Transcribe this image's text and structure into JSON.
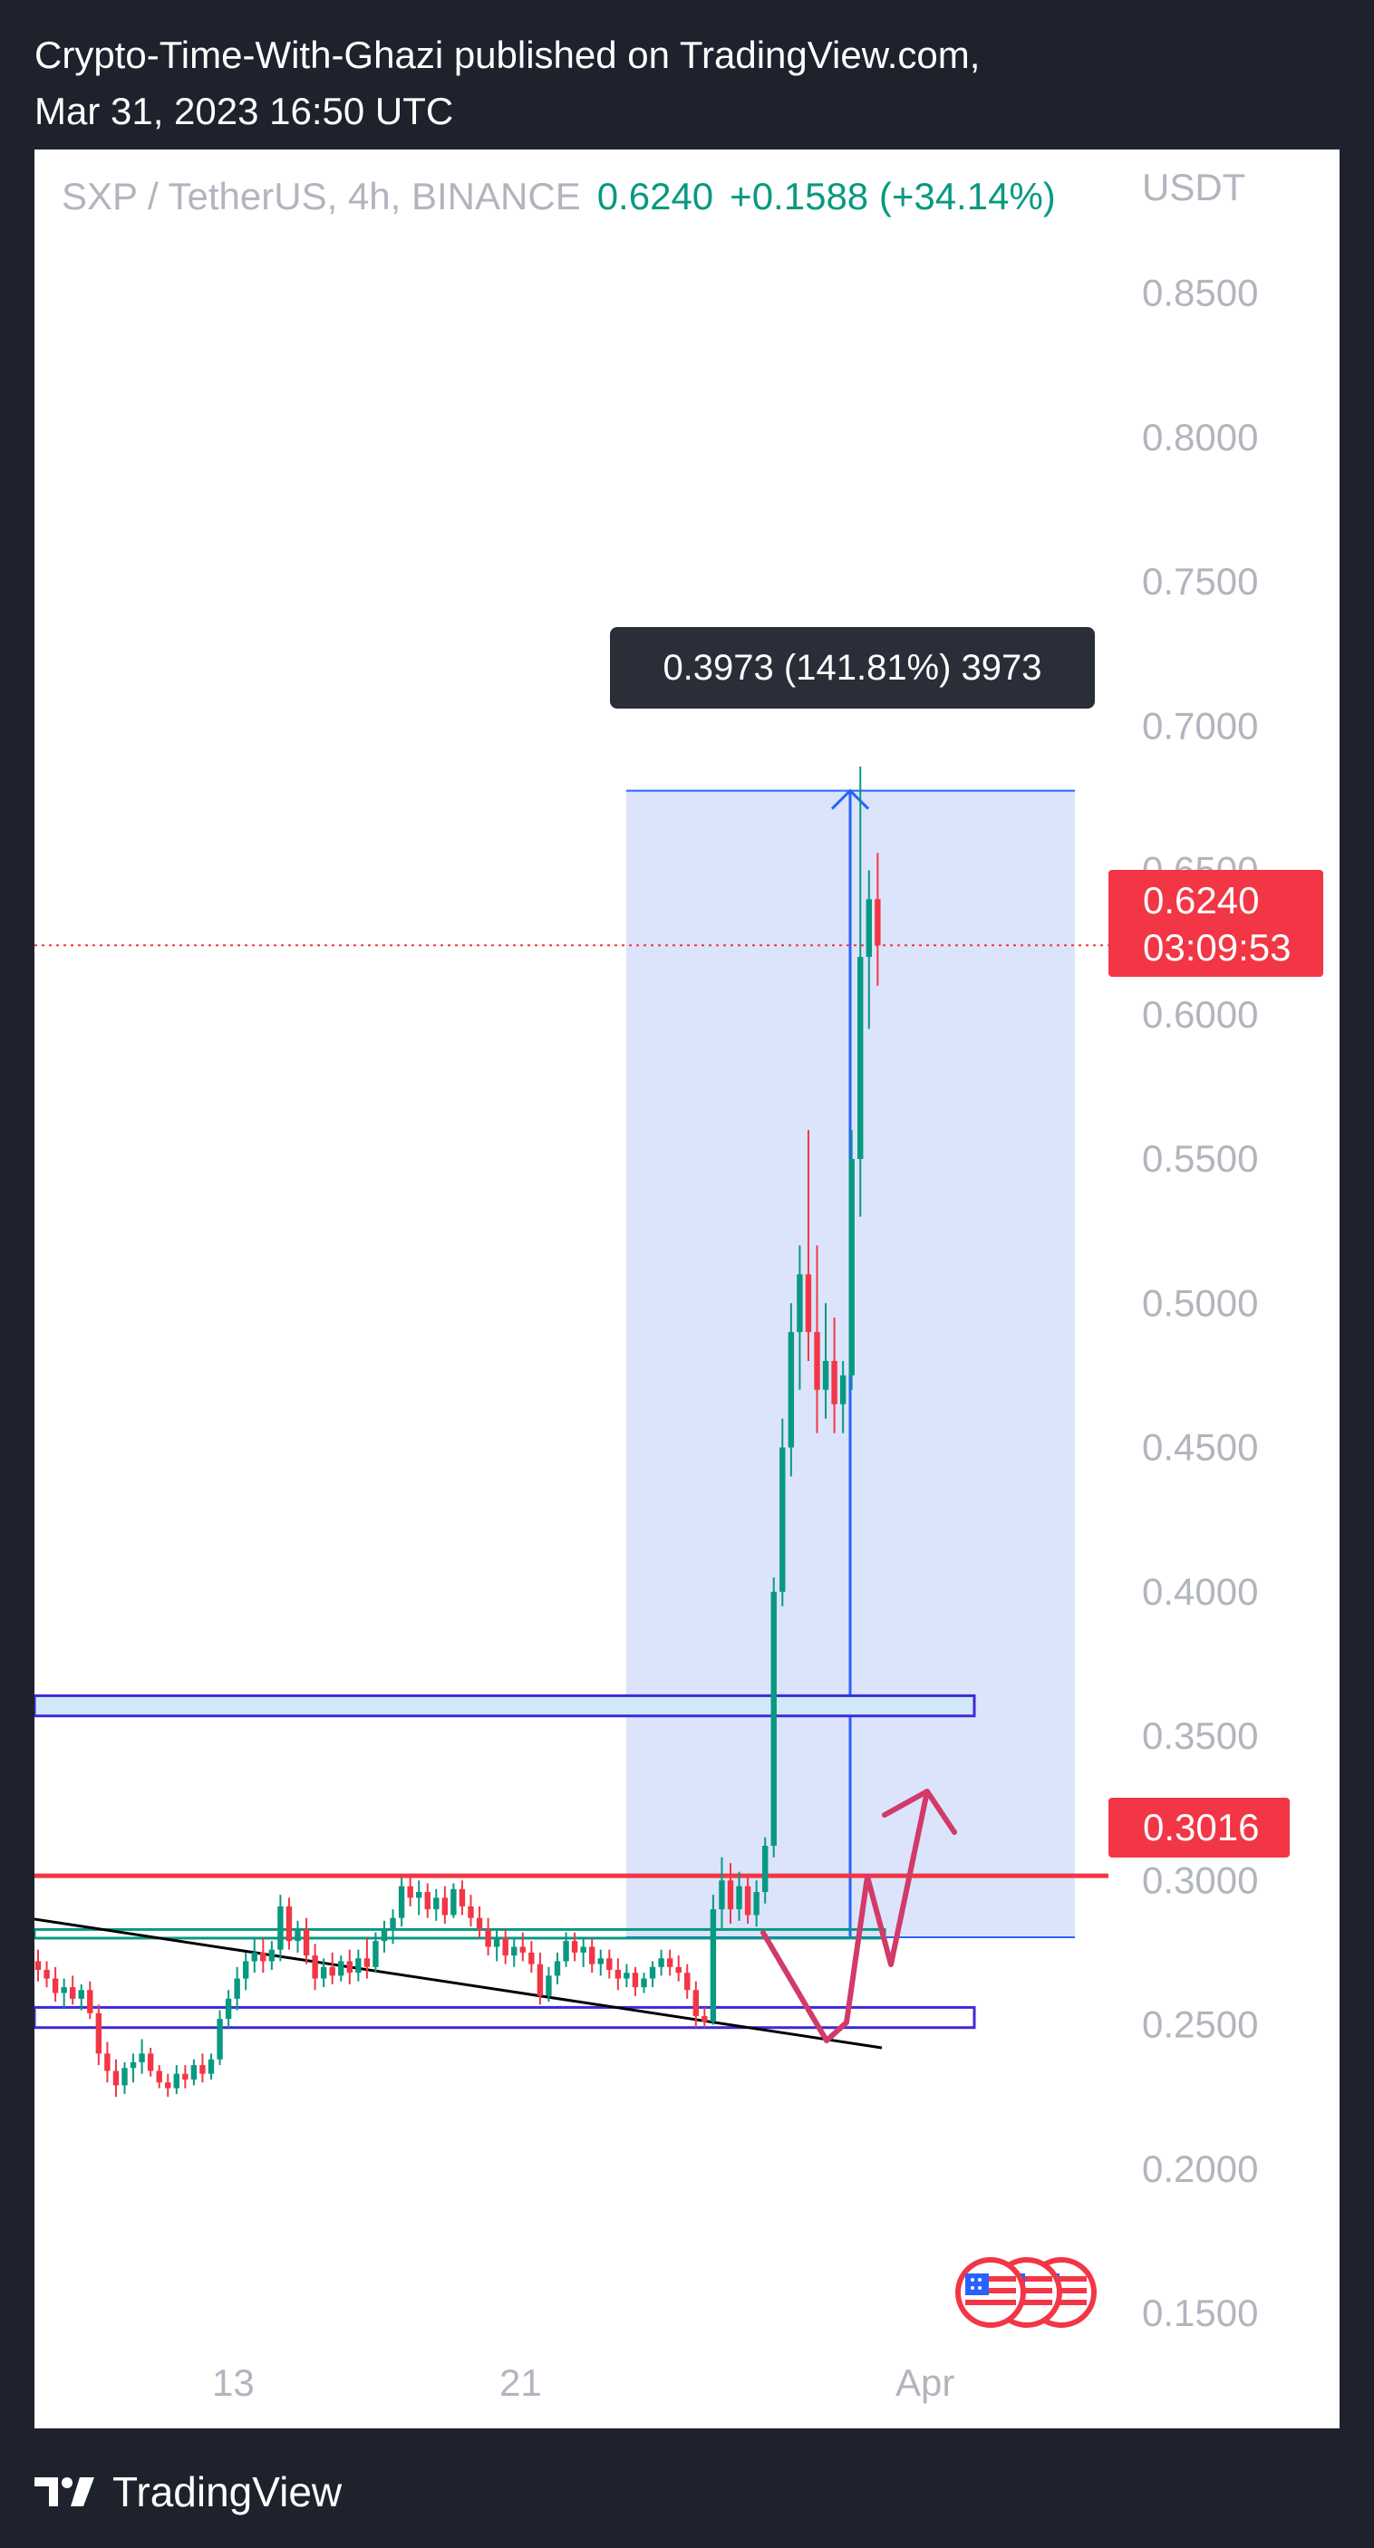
{
  "publication": {
    "line1": "Crypto-Time-With-Ghazi published on TradingView.com,",
    "line2": "Mar 31, 2023 16:50 UTC"
  },
  "legend": {
    "symbol": "SXP / TetherUS, 4h, BINANCE",
    "last_price": "0.6240",
    "change": "+0.1588 (+34.14%)"
  },
  "currency": "USDT",
  "measure_label": "0.3973 (141.81%) 3973",
  "price_tag": {
    "value": "0.6240",
    "countdown": "03:09:53"
  },
  "level_tag": "0.3016",
  "footer": {
    "brand": "TradingView"
  },
  "colors": {
    "up": "#089981",
    "down": "#f23645",
    "measure_fill": "#dbe4fb",
    "measure_line": "#2962ff",
    "zone_fill": "#cfe9fb",
    "zone_border": "#3f2bd6",
    "arrow": "#d23a68"
  },
  "chart_data": {
    "type": "candlestick",
    "title": "",
    "xlabel": "",
    "ylabel": "",
    "ylim": [
      0.12,
      0.86
    ],
    "y_ticks": [
      "0.8500",
      "0.8000",
      "0.7500",
      "0.7000",
      "0.6500",
      "0.6000",
      "0.5500",
      "0.5000",
      "0.4500",
      "0.4000",
      "0.3500",
      "0.3000",
      "0.2500",
      "0.2000",
      "0.1500"
    ],
    "x_ticks": [
      "13",
      "21",
      "Apr"
    ],
    "candles": [
      {
        "o": 0.272,
        "h": 0.276,
        "l": 0.265,
        "c": 0.269
      },
      {
        "o": 0.269,
        "h": 0.272,
        "l": 0.263,
        "c": 0.266
      },
      {
        "o": 0.266,
        "h": 0.27,
        "l": 0.258,
        "c": 0.261
      },
      {
        "o": 0.261,
        "h": 0.266,
        "l": 0.256,
        "c": 0.263
      },
      {
        "o": 0.263,
        "h": 0.267,
        "l": 0.257,
        "c": 0.259
      },
      {
        "o": 0.259,
        "h": 0.264,
        "l": 0.255,
        "c": 0.262
      },
      {
        "o": 0.262,
        "h": 0.265,
        "l": 0.252,
        "c": 0.254
      },
      {
        "o": 0.254,
        "h": 0.257,
        "l": 0.236,
        "c": 0.24
      },
      {
        "o": 0.24,
        "h": 0.244,
        "l": 0.23,
        "c": 0.234
      },
      {
        "o": 0.234,
        "h": 0.238,
        "l": 0.225,
        "c": 0.229
      },
      {
        "o": 0.229,
        "h": 0.237,
        "l": 0.226,
        "c": 0.235
      },
      {
        "o": 0.235,
        "h": 0.24,
        "l": 0.23,
        "c": 0.237
      },
      {
        "o": 0.237,
        "h": 0.245,
        "l": 0.233,
        "c": 0.24
      },
      {
        "o": 0.24,
        "h": 0.242,
        "l": 0.232,
        "c": 0.234
      },
      {
        "o": 0.234,
        "h": 0.236,
        "l": 0.228,
        "c": 0.23
      },
      {
        "o": 0.23,
        "h": 0.233,
        "l": 0.225,
        "c": 0.228
      },
      {
        "o": 0.228,
        "h": 0.236,
        "l": 0.226,
        "c": 0.233
      },
      {
        "o": 0.233,
        "h": 0.236,
        "l": 0.228,
        "c": 0.231
      },
      {
        "o": 0.231,
        "h": 0.238,
        "l": 0.229,
        "c": 0.236
      },
      {
        "o": 0.236,
        "h": 0.24,
        "l": 0.23,
        "c": 0.233
      },
      {
        "o": 0.233,
        "h": 0.24,
        "l": 0.231,
        "c": 0.238
      },
      {
        "o": 0.238,
        "h": 0.255,
        "l": 0.236,
        "c": 0.252
      },
      {
        "o": 0.252,
        "h": 0.262,
        "l": 0.249,
        "c": 0.259
      },
      {
        "o": 0.259,
        "h": 0.27,
        "l": 0.255,
        "c": 0.266
      },
      {
        "o": 0.266,
        "h": 0.275,
        "l": 0.262,
        "c": 0.272
      },
      {
        "o": 0.272,
        "h": 0.28,
        "l": 0.268,
        "c": 0.275
      },
      {
        "o": 0.275,
        "h": 0.28,
        "l": 0.268,
        "c": 0.272
      },
      {
        "o": 0.272,
        "h": 0.279,
        "l": 0.269,
        "c": 0.276
      },
      {
        "o": 0.276,
        "h": 0.295,
        "l": 0.272,
        "c": 0.291
      },
      {
        "o": 0.291,
        "h": 0.294,
        "l": 0.276,
        "c": 0.279
      },
      {
        "o": 0.279,
        "h": 0.286,
        "l": 0.275,
        "c": 0.283
      },
      {
        "o": 0.283,
        "h": 0.287,
        "l": 0.271,
        "c": 0.274
      },
      {
        "o": 0.274,
        "h": 0.278,
        "l": 0.262,
        "c": 0.266
      },
      {
        "o": 0.266,
        "h": 0.273,
        "l": 0.263,
        "c": 0.27
      },
      {
        "o": 0.27,
        "h": 0.275,
        "l": 0.264,
        "c": 0.267
      },
      {
        "o": 0.267,
        "h": 0.274,
        "l": 0.265,
        "c": 0.272
      },
      {
        "o": 0.272,
        "h": 0.276,
        "l": 0.264,
        "c": 0.268
      },
      {
        "o": 0.268,
        "h": 0.276,
        "l": 0.265,
        "c": 0.273
      },
      {
        "o": 0.273,
        "h": 0.28,
        "l": 0.266,
        "c": 0.27
      },
      {
        "o": 0.27,
        "h": 0.282,
        "l": 0.268,
        "c": 0.279
      },
      {
        "o": 0.279,
        "h": 0.286,
        "l": 0.275,
        "c": 0.283
      },
      {
        "o": 0.283,
        "h": 0.29,
        "l": 0.278,
        "c": 0.287
      },
      {
        "o": 0.287,
        "h": 0.301,
        "l": 0.284,
        "c": 0.298
      },
      {
        "o": 0.298,
        "h": 0.302,
        "l": 0.291,
        "c": 0.294
      },
      {
        "o": 0.294,
        "h": 0.3,
        "l": 0.288,
        "c": 0.296
      },
      {
        "o": 0.296,
        "h": 0.299,
        "l": 0.287,
        "c": 0.29
      },
      {
        "o": 0.29,
        "h": 0.297,
        "l": 0.286,
        "c": 0.294
      },
      {
        "o": 0.294,
        "h": 0.298,
        "l": 0.285,
        "c": 0.288
      },
      {
        "o": 0.288,
        "h": 0.299,
        "l": 0.287,
        "c": 0.297
      },
      {
        "o": 0.297,
        "h": 0.3,
        "l": 0.288,
        "c": 0.291
      },
      {
        "o": 0.291,
        "h": 0.295,
        "l": 0.284,
        "c": 0.287
      },
      {
        "o": 0.287,
        "h": 0.291,
        "l": 0.28,
        "c": 0.283
      },
      {
        "o": 0.283,
        "h": 0.287,
        "l": 0.274,
        "c": 0.277
      },
      {
        "o": 0.277,
        "h": 0.283,
        "l": 0.272,
        "c": 0.28
      },
      {
        "o": 0.28,
        "h": 0.283,
        "l": 0.271,
        "c": 0.274
      },
      {
        "o": 0.274,
        "h": 0.28,
        "l": 0.27,
        "c": 0.277
      },
      {
        "o": 0.277,
        "h": 0.282,
        "l": 0.272,
        "c": 0.275
      },
      {
        "o": 0.275,
        "h": 0.279,
        "l": 0.268,
        "c": 0.271
      },
      {
        "o": 0.271,
        "h": 0.275,
        "l": 0.257,
        "c": 0.26
      },
      {
        "o": 0.26,
        "h": 0.27,
        "l": 0.258,
        "c": 0.267
      },
      {
        "o": 0.267,
        "h": 0.275,
        "l": 0.264,
        "c": 0.272
      },
      {
        "o": 0.272,
        "h": 0.282,
        "l": 0.27,
        "c": 0.279
      },
      {
        "o": 0.279,
        "h": 0.282,
        "l": 0.272,
        "c": 0.275
      },
      {
        "o": 0.275,
        "h": 0.28,
        "l": 0.27,
        "c": 0.277
      },
      {
        "o": 0.277,
        "h": 0.28,
        "l": 0.268,
        "c": 0.271
      },
      {
        "o": 0.271,
        "h": 0.276,
        "l": 0.267,
        "c": 0.273
      },
      {
        "o": 0.273,
        "h": 0.276,
        "l": 0.266,
        "c": 0.269
      },
      {
        "o": 0.269,
        "h": 0.273,
        "l": 0.262,
        "c": 0.266
      },
      {
        "o": 0.266,
        "h": 0.271,
        "l": 0.263,
        "c": 0.268
      },
      {
        "o": 0.268,
        "h": 0.27,
        "l": 0.26,
        "c": 0.263
      },
      {
        "o": 0.263,
        "h": 0.268,
        "l": 0.261,
        "c": 0.266
      },
      {
        "o": 0.266,
        "h": 0.272,
        "l": 0.263,
        "c": 0.27
      },
      {
        "o": 0.27,
        "h": 0.276,
        "l": 0.267,
        "c": 0.273
      },
      {
        "o": 0.273,
        "h": 0.276,
        "l": 0.267,
        "c": 0.27
      },
      {
        "o": 0.27,
        "h": 0.274,
        "l": 0.265,
        "c": 0.268
      },
      {
        "o": 0.268,
        "h": 0.271,
        "l": 0.259,
        "c": 0.262
      },
      {
        "o": 0.262,
        "h": 0.265,
        "l": 0.249,
        "c": 0.253
      },
      {
        "o": 0.253,
        "h": 0.256,
        "l": 0.249,
        "c": 0.251
      },
      {
        "o": 0.251,
        "h": 0.295,
        "l": 0.25,
        "c": 0.29
      },
      {
        "o": 0.29,
        "h": 0.308,
        "l": 0.283,
        "c": 0.3
      },
      {
        "o": 0.3,
        "h": 0.306,
        "l": 0.285,
        "c": 0.29
      },
      {
        "o": 0.29,
        "h": 0.303,
        "l": 0.286,
        "c": 0.298
      },
      {
        "o": 0.298,
        "h": 0.302,
        "l": 0.285,
        "c": 0.288
      },
      {
        "o": 0.288,
        "h": 0.3,
        "l": 0.284,
        "c": 0.296
      },
      {
        "o": 0.296,
        "h": 0.315,
        "l": 0.292,
        "c": 0.312
      },
      {
        "o": 0.312,
        "h": 0.405,
        "l": 0.308,
        "c": 0.4
      },
      {
        "o": 0.4,
        "h": 0.46,
        "l": 0.395,
        "c": 0.45
      },
      {
        "o": 0.45,
        "h": 0.5,
        "l": 0.44,
        "c": 0.49
      },
      {
        "o": 0.49,
        "h": 0.52,
        "l": 0.47,
        "c": 0.51
      },
      {
        "o": 0.51,
        "h": 0.56,
        "l": 0.48,
        "c": 0.49
      },
      {
        "o": 0.49,
        "h": 0.52,
        "l": 0.455,
        "c": 0.47
      },
      {
        "o": 0.47,
        "h": 0.5,
        "l": 0.46,
        "c": 0.48
      },
      {
        "o": 0.48,
        "h": 0.495,
        "l": 0.455,
        "c": 0.465
      },
      {
        "o": 0.465,
        "h": 0.48,
        "l": 0.455,
        "c": 0.475
      },
      {
        "o": 0.475,
        "h": 0.56,
        "l": 0.47,
        "c": 0.55
      },
      {
        "o": 0.55,
        "h": 0.686,
        "l": 0.53,
        "c": 0.62
      },
      {
        "o": 0.62,
        "h": 0.65,
        "l": 0.595,
        "c": 0.64
      },
      {
        "o": 0.64,
        "h": 0.656,
        "l": 0.61,
        "c": 0.624
      }
    ],
    "overlays": {
      "current_price": 0.624,
      "support_level": 0.3016,
      "measure_range": {
        "from": 0.2803,
        "to": 0.6776
      },
      "resistance_zone": {
        "from": 0.357,
        "to": 0.364
      },
      "support_zone": {
        "from": 0.249,
        "to": 0.256
      },
      "base_zone": {
        "from": 0.28,
        "to": 0.283
      }
    }
  }
}
